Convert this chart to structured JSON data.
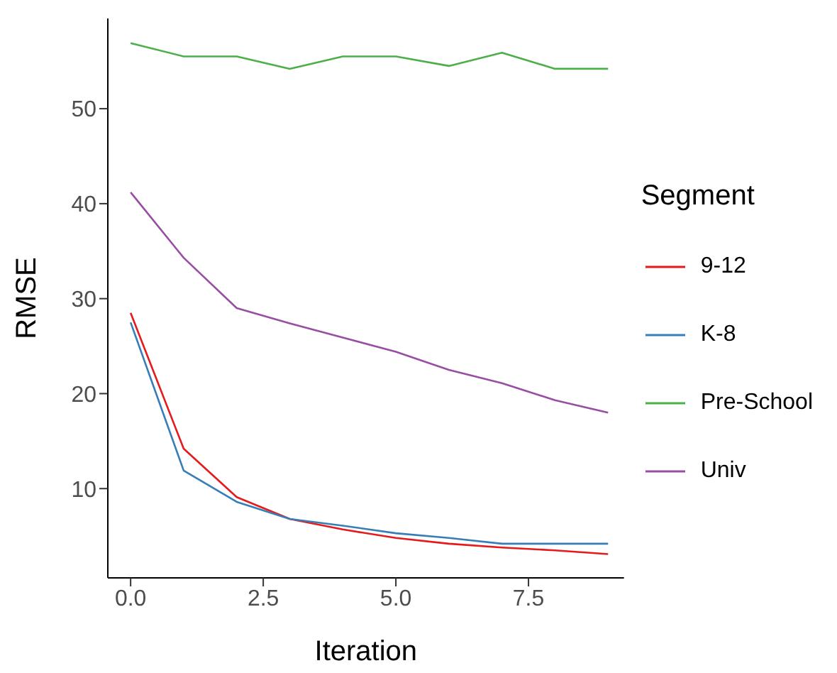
{
  "chart_data": {
    "type": "line",
    "xlabel": "Iteration",
    "ylabel": "RMSE",
    "legend_title": "Segment",
    "legend": "right",
    "grid": false,
    "marker": "none",
    "line_style": "solid",
    "x": [
      0,
      1,
      2,
      3,
      4,
      5,
      6,
      7,
      8,
      9
    ],
    "xlim": [
      -0.43,
      9.3
    ],
    "xticks": [
      {
        "value": 0,
        "label": "0.0"
      },
      {
        "value": 2.5,
        "label": "2.5"
      },
      {
        "value": 5,
        "label": "5.0"
      },
      {
        "value": 7.5,
        "label": "7.5"
      }
    ],
    "ylim": [
      0.6,
      59.5
    ],
    "yticks": [
      10,
      20,
      30,
      40,
      50
    ],
    "series": [
      {
        "name": "9-12",
        "color": "#e41a1c",
        "values": [
          28.5,
          14.2,
          9.1,
          6.8,
          5.7,
          4.8,
          4.2,
          3.8,
          3.5,
          3.1
        ]
      },
      {
        "name": "K-8",
        "color": "#377eb8",
        "values": [
          27.5,
          11.9,
          8.6,
          6.8,
          6.1,
          5.3,
          4.8,
          4.2,
          4.2,
          4.2
        ]
      },
      {
        "name": "Pre-School",
        "color": "#4daf4a",
        "values": [
          56.9,
          55.5,
          55.5,
          54.2,
          55.5,
          55.5,
          54.5,
          55.9,
          54.2,
          54.2
        ]
      },
      {
        "name": "Univ",
        "color": "#984ea3",
        "values": [
          41.2,
          34.3,
          29.0,
          27.4,
          25.9,
          24.4,
          22.5,
          21.1,
          19.3,
          18.0
        ]
      }
    ]
  }
}
